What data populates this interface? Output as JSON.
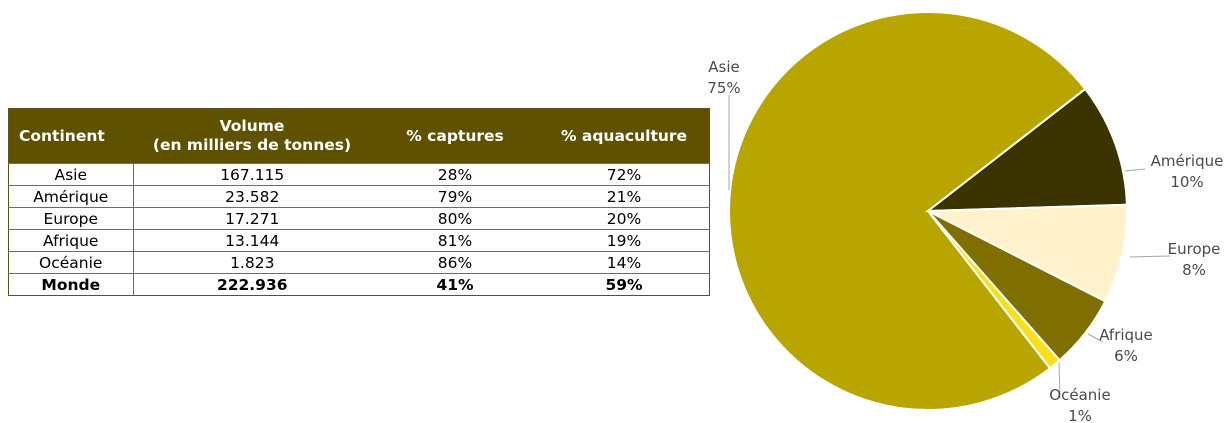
{
  "table": {
    "headers": [
      "Continent",
      "Volume",
      "(en milliers de tonnes)",
      "% captures",
      "% aquaculture"
    ],
    "rows": [
      {
        "continent": "Asie",
        "volume": "167.115",
        "captures": "28%",
        "aquaculture": "72%"
      },
      {
        "continent": "Amérique",
        "volume": "23.582",
        "captures": "79%",
        "aquaculture": "21%"
      },
      {
        "continent": "Europe",
        "volume": "17.271",
        "captures": "80%",
        "aquaculture": "20%"
      },
      {
        "continent": "Afrique",
        "volume": "13.144",
        "captures": "81%",
        "aquaculture": "19%"
      },
      {
        "continent": "Océanie",
        "volume": "1.823",
        "captures": "86%",
        "aquaculture": "14%"
      }
    ],
    "total": {
      "continent": "Monde",
      "volume": "222.936",
      "captures": "41%",
      "aquaculture": "59%"
    },
    "header_color": "#5e5200"
  },
  "chart_data": {
    "type": "pie",
    "categories": [
      "Asie",
      "Amérique",
      "Europe",
      "Afrique",
      "Océanie"
    ],
    "values": [
      75,
      10,
      8,
      6,
      1
    ],
    "percent_labels": [
      "75%",
      "10%",
      "8%",
      "6%",
      "1%"
    ],
    "colors": [
      "#b8a500",
      "#3b3400",
      "#fff2cc",
      "#7f6f00",
      "#f5e01a"
    ],
    "legend": "none",
    "data_labels": "outside with leader lines"
  }
}
